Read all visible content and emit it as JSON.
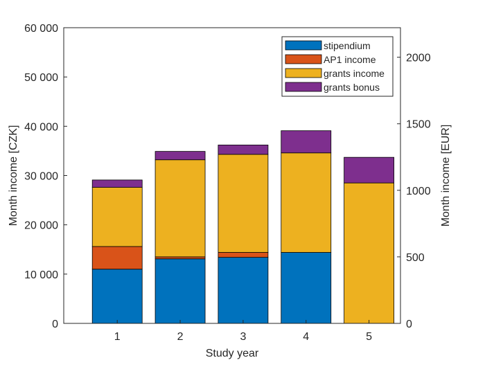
{
  "chart_data": {
    "type": "bar",
    "stacked": true,
    "categories": [
      "1",
      "2",
      "3",
      "4",
      "5"
    ],
    "series": [
      {
        "name": "stipendium",
        "color": "#0072BD",
        "values": [
          11000,
          13100,
          13400,
          14400,
          0
        ]
      },
      {
        "name": "AP1 income",
        "color": "#D95319",
        "values": [
          4600,
          400,
          1000,
          0,
          0
        ]
      },
      {
        "name": "grants income",
        "color": "#EDB120",
        "values": [
          12000,
          19700,
          19900,
          20200,
          28500
        ]
      },
      {
        "name": "grants bonus",
        "color": "#7E2F8E",
        "values": [
          1500,
          1700,
          1900,
          4500,
          5200
        ]
      }
    ],
    "xlabel": "Study year",
    "ylabel": "Month income [CZK]",
    "ylabel_right": "Month income [EUR]",
    "ylim": [
      0,
      60000
    ],
    "y_ticks": [
      "0",
      "10 000",
      "20 000",
      "30 000",
      "40 000",
      "50 000",
      "60 000"
    ],
    "y_tick_values": [
      0,
      10000,
      20000,
      30000,
      40000,
      50000,
      60000
    ],
    "y_right_ticks": [
      "0",
      "500",
      "1000",
      "1500",
      "2000"
    ],
    "y_right_tick_values": [
      0,
      500,
      1000,
      1500,
      2000
    ],
    "ylim_right": [
      0,
      2222
    ],
    "grid": false,
    "legend_position": "top-right"
  }
}
